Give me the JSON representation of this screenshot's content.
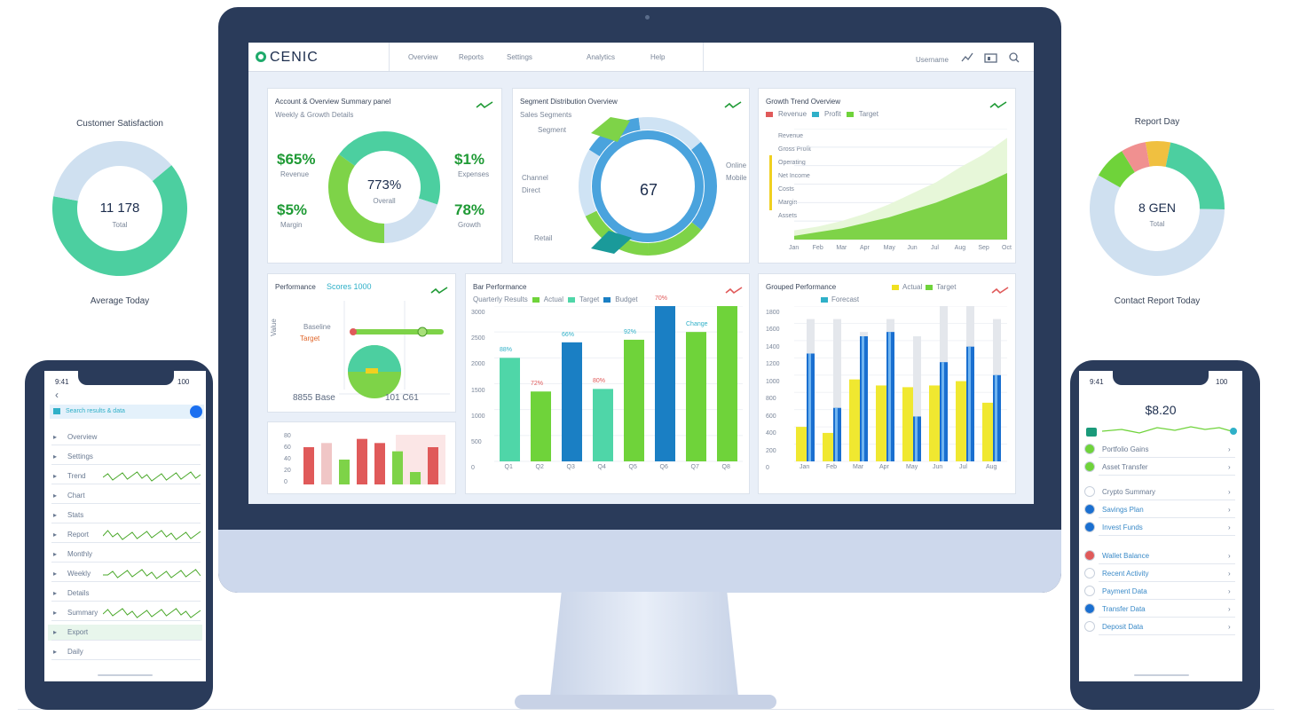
{
  "monitor": {
    "logo": "CENIC",
    "nav": [
      "Overview",
      "Reports",
      "Settings",
      "Analytics",
      "Help"
    ],
    "header_right": "Username",
    "kpi_card": {
      "title": "Account & Overview Summary panel",
      "subtitle": "Weekly & Growth Details",
      "kpis": [
        {
          "value": "$65%",
          "caption": "Revenue"
        },
        {
          "value": "$1%",
          "caption": "Expenses"
        },
        {
          "value": "$5%",
          "caption": "Margin"
        },
        {
          "value": "78%",
          "caption": "Growth"
        }
      ],
      "center_value": "773%",
      "center_caption": "Overall",
      "donut_slices": [
        {
          "value": 30,
          "color": "#4ccfa0"
        },
        {
          "value": 20,
          "color": "#cfe0f0"
        },
        {
          "value": 35,
          "color": "#7ed348"
        },
        {
          "value": 15,
          "color": "#4ccfa0"
        }
      ]
    },
    "ring_card": {
      "title": "Segment Distribution Overview",
      "subtitle": "Sales Segments",
      "center_value": "67",
      "labels": [
        "Segment",
        "Channel",
        "Direct",
        "Retail",
        "Online",
        "Mobile"
      ],
      "slices": [
        {
          "value": 22,
          "color": "#4aa3dd"
        },
        {
          "value": 14,
          "color": "#7ed348"
        },
        {
          "value": 18,
          "color": "#7ed348"
        },
        {
          "value": 16,
          "color": "#cfe3f4"
        },
        {
          "value": 14,
          "color": "#4aa3dd"
        },
        {
          "value": 16,
          "color": "#cfe3f4"
        }
      ]
    },
    "area_card": {
      "title": "Growth Trend Overview",
      "legend": [
        "Revenue",
        "Profit",
        "Target"
      ],
      "rows": [
        "Revenue",
        "Gross Profit",
        "Operating",
        "Net Income",
        "Costs",
        "Margin",
        "Assets"
      ],
      "x_labels": [
        "Jan",
        "Feb",
        "Mar",
        "Apr",
        "May",
        "Jun",
        "Jul",
        "Aug",
        "Sep",
        "Oct"
      ],
      "series_light": [
        10,
        14,
        20,
        28,
        38,
        50,
        62,
        78,
        92,
        110
      ],
      "series_green": [
        4,
        8,
        12,
        18,
        24,
        32,
        40,
        50,
        60,
        72
      ],
      "ymax": 120
    },
    "line_card": {
      "title": "Performance",
      "tag": "Scores 1000",
      "y_label": "Value",
      "row_labels": [
        "Baseline",
        "Target"
      ],
      "footer_left": "8855 Base",
      "footer_right": "101 C61"
    },
    "mini_bar_card": {
      "y_labels": [
        "80",
        "60",
        "40",
        "20",
        "0"
      ],
      "bars": [
        {
          "value": 45,
          "color": "#e05a5a"
        },
        {
          "value": 50,
          "color": "#f0c6c6"
        },
        {
          "value": 30,
          "color": "#7ed348"
        },
        {
          "value": 55,
          "color": "#e05a5a"
        },
        {
          "value": 50,
          "color": "#e05a5a"
        },
        {
          "value": 40,
          "color": "#7ed348"
        },
        {
          "value": 15,
          "color": "#7ed348"
        },
        {
          "value": 45,
          "color": "#e05a5a"
        }
      ]
    },
    "bar_card": {
      "title": "Bar Performance",
      "subtitle": "Quarterly Results",
      "legend": [
        "Actual",
        "Target",
        "Budget"
      ],
      "y_labels": [
        "3000",
        "2500",
        "2000",
        "1500",
        "1000",
        "500",
        "0"
      ],
      "x_labels": [
        "Q1",
        "Q2",
        "Q3",
        "Q4",
        "Q5",
        "Q6",
        "Q7",
        "Q8"
      ],
      "bar_tags": [
        "88%",
        "72%",
        "66%",
        "80%",
        "92%",
        "70%",
        "Change"
      ],
      "values": [
        2000,
        1350,
        2300,
        1400,
        2350,
        3000,
        2500,
        3000
      ],
      "colors": [
        "#4fd6a8",
        "#6fd33a",
        "#1a7fc4",
        "#4fd6a8",
        "#6fd33a",
        "#1a7fc4",
        "#6fd33a",
        "#6fd33a"
      ],
      "ymax": 3000
    },
    "grouped_card": {
      "title": "Grouped Performance",
      "legend": [
        "Actual",
        "Target",
        "Forecast"
      ],
      "y_labels": [
        "1800",
        "1600",
        "1400",
        "1200",
        "1000",
        "800",
        "600",
        "400",
        "200",
        "0"
      ],
      "x_labels": [
        "Jan",
        "Feb",
        "Mar",
        "Apr",
        "May",
        "Jun",
        "Jul",
        "Aug"
      ],
      "blue": [
        1250,
        620,
        1450,
        1500,
        520,
        1150,
        1330,
        1000
      ],
      "yellow": [
        400,
        330,
        950,
        880,
        860,
        880,
        930,
        680
      ],
      "grey": [
        1650,
        1650,
        1500,
        1650,
        1450,
        1800,
        1800,
        1650
      ],
      "ymax": 1800
    }
  },
  "left_donut": {
    "title": "Customer Satisfaction",
    "center": "11 178",
    "center_caption": "Total",
    "caption": "Average Today",
    "slices": [
      {
        "value": 64,
        "color": "#4ccfa0"
      },
      {
        "value": 36,
        "color": "#cfe0f0"
      }
    ]
  },
  "right_donut": {
    "title": "Report Day",
    "center": "8 GEN",
    "center_caption": "Total",
    "caption": "Contact Report Today",
    "slices": [
      {
        "value": 6,
        "color": "#f0c040"
      },
      {
        "value": 22,
        "color": "#4ccfa0"
      },
      {
        "value": 58,
        "color": "#cfe0f0"
      },
      {
        "value": 8,
        "color": "#6fd33a"
      },
      {
        "value": 6,
        "color": "#f09090"
      }
    ]
  },
  "left_phone": {
    "time": "9:41",
    "battery": "100",
    "search_label": "Search results & data",
    "rows": [
      "Overview",
      "Settings",
      "Trend",
      "Chart",
      "Stats",
      "Report",
      "Monthly",
      "Weekly",
      "Details",
      "Summary",
      "Export",
      "Daily"
    ]
  },
  "right_phone": {
    "time": "9:41",
    "battery": "100",
    "value": "$8.20",
    "rows": [
      "Portfolio Gains",
      "Asset Transfer",
      "Crypto Summary",
      "Savings Plan",
      "Invest Funds",
      "Wallet Balance",
      "Recent Activity",
      "Payment Data",
      "Transfer Data",
      "Deposit Data"
    ]
  }
}
